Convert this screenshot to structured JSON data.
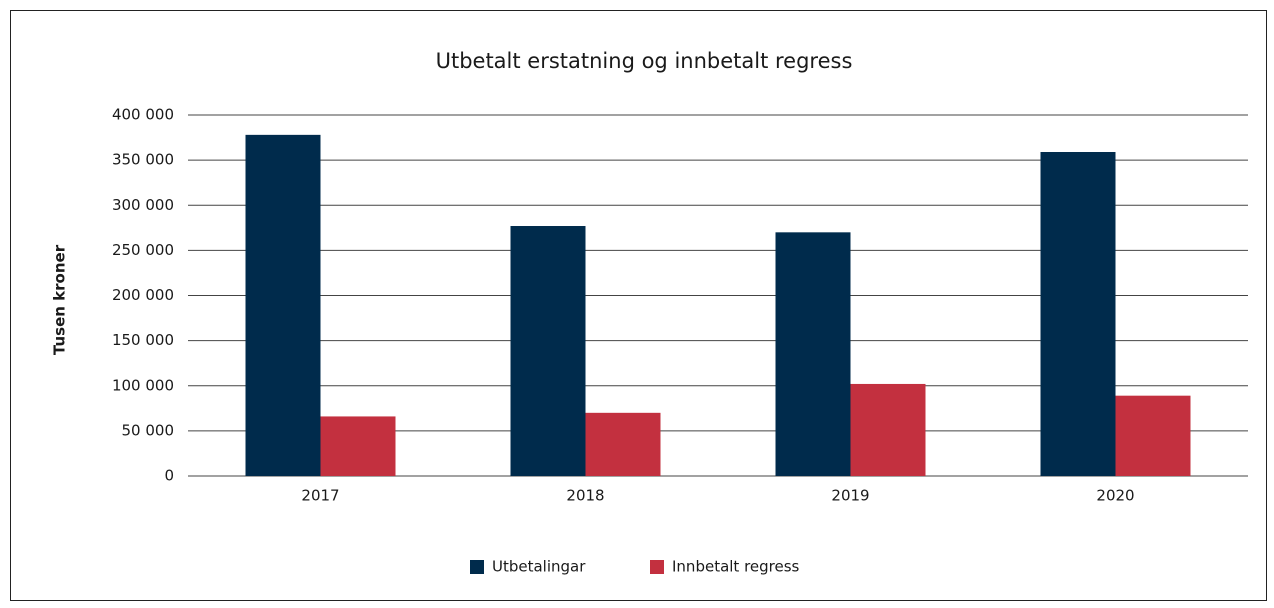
{
  "chart_data": {
    "type": "bar",
    "title": "Utbetalt erstatning og innbetalt regress",
    "y_label": "Tusen kroner",
    "categories": [
      "2017",
      "2018",
      "2019",
      "2020"
    ],
    "series": [
      {
        "name": "Utbetalingar",
        "color": "#002b4c",
        "values": [
          378000,
          277000,
          270000,
          359000
        ]
      },
      {
        "name": "Innbetalt regress",
        "color": "#c3303f",
        "values": [
          66000,
          70000,
          102000,
          89000
        ]
      }
    ],
    "ylim": [
      0,
      400000
    ],
    "yticks": [
      0,
      {
        "value": 50000,
        "label": "50 000"
      },
      {
        "value": 100000,
        "label": "100 000"
      },
      {
        "value": 150000,
        "label": "150 000"
      },
      {
        "value": 200000,
        "label": "200 000"
      },
      {
        "value": 250000,
        "label": "250 000"
      },
      {
        "value": 300000,
        "label": "300 000"
      },
      {
        "value": 350000,
        "label": "350 000"
      },
      {
        "value": 400000,
        "label": "400 000"
      }
    ],
    "grid": true,
    "legend": "bottom"
  }
}
